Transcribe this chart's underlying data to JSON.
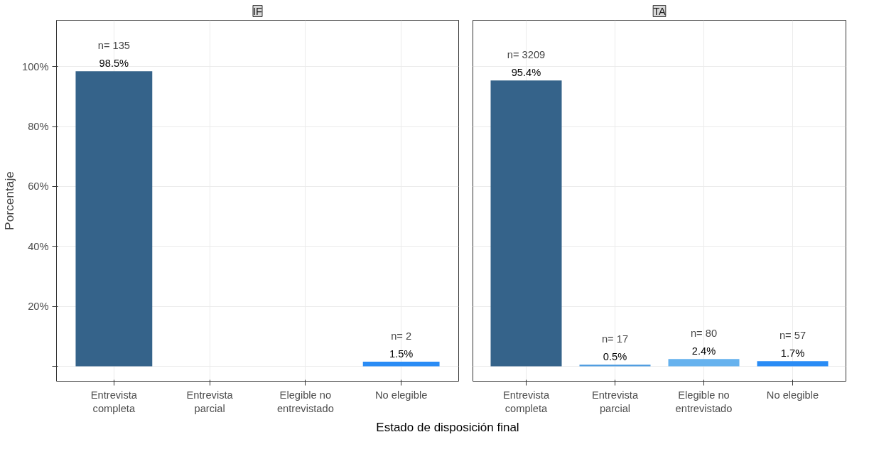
{
  "chart_data": [
    {
      "type": "bar",
      "title": "IF",
      "ylabel": "Porcentaje",
      "xlabel": "Estado de disposición final",
      "categories": [
        "Entrevista completa",
        "Entrevista parcial",
        "Elegible no entrevistado",
        "No elegible"
      ],
      "values": [
        98.5,
        null,
        null,
        1.5
      ],
      "colors": [
        "#35638a",
        "#4c9be0",
        "#66b2ee",
        "#2a8cf5"
      ],
      "value_labels": [
        "98.5%",
        null,
        null,
        "1.5%"
      ],
      "annotations": [
        "n= 135",
        "n= 2"
      ],
      "ylim": [
        -5,
        115.5
      ],
      "yticks": [
        {
          "value": 0,
          "label": null
        },
        {
          "value": 20,
          "label": "20%"
        },
        {
          "value": 40,
          "label": "40%"
        },
        {
          "value": 60,
          "label": "60%"
        },
        {
          "value": 80,
          "label": "80%"
        },
        {
          "value": 100,
          "label": "100%"
        }
      ],
      "grid": true
    },
    {
      "type": "bar",
      "title": "TA",
      "categories": [
        "Entrevista completa",
        "Entrevista parcial",
        "Elegible no entrevistado",
        "No elegible"
      ],
      "values": [
        95.4,
        0.5,
        2.4,
        1.7
      ],
      "colors": [
        "#35638a",
        "#4c9be0",
        "#66b2ee",
        "#2a8cf5"
      ],
      "value_labels": [
        "95.4%",
        "0.5%",
        "2.4%",
        "1.7%"
      ],
      "annotations": [
        "n= 3209",
        "n= 17",
        "n= 80",
        "n= 57"
      ],
      "ylim": [
        -5,
        115.5
      ],
      "yticks": [
        {
          "value": 0,
          "label": null
        },
        {
          "value": 20,
          "label": "20%"
        },
        {
          "value": 40,
          "label": "40%"
        },
        {
          "value": 60,
          "label": "60%"
        },
        {
          "value": 80,
          "label": "80%"
        },
        {
          "value": 100,
          "label": "100%"
        }
      ],
      "grid": true,
      "tick_labels": "x"
    }
  ]
}
